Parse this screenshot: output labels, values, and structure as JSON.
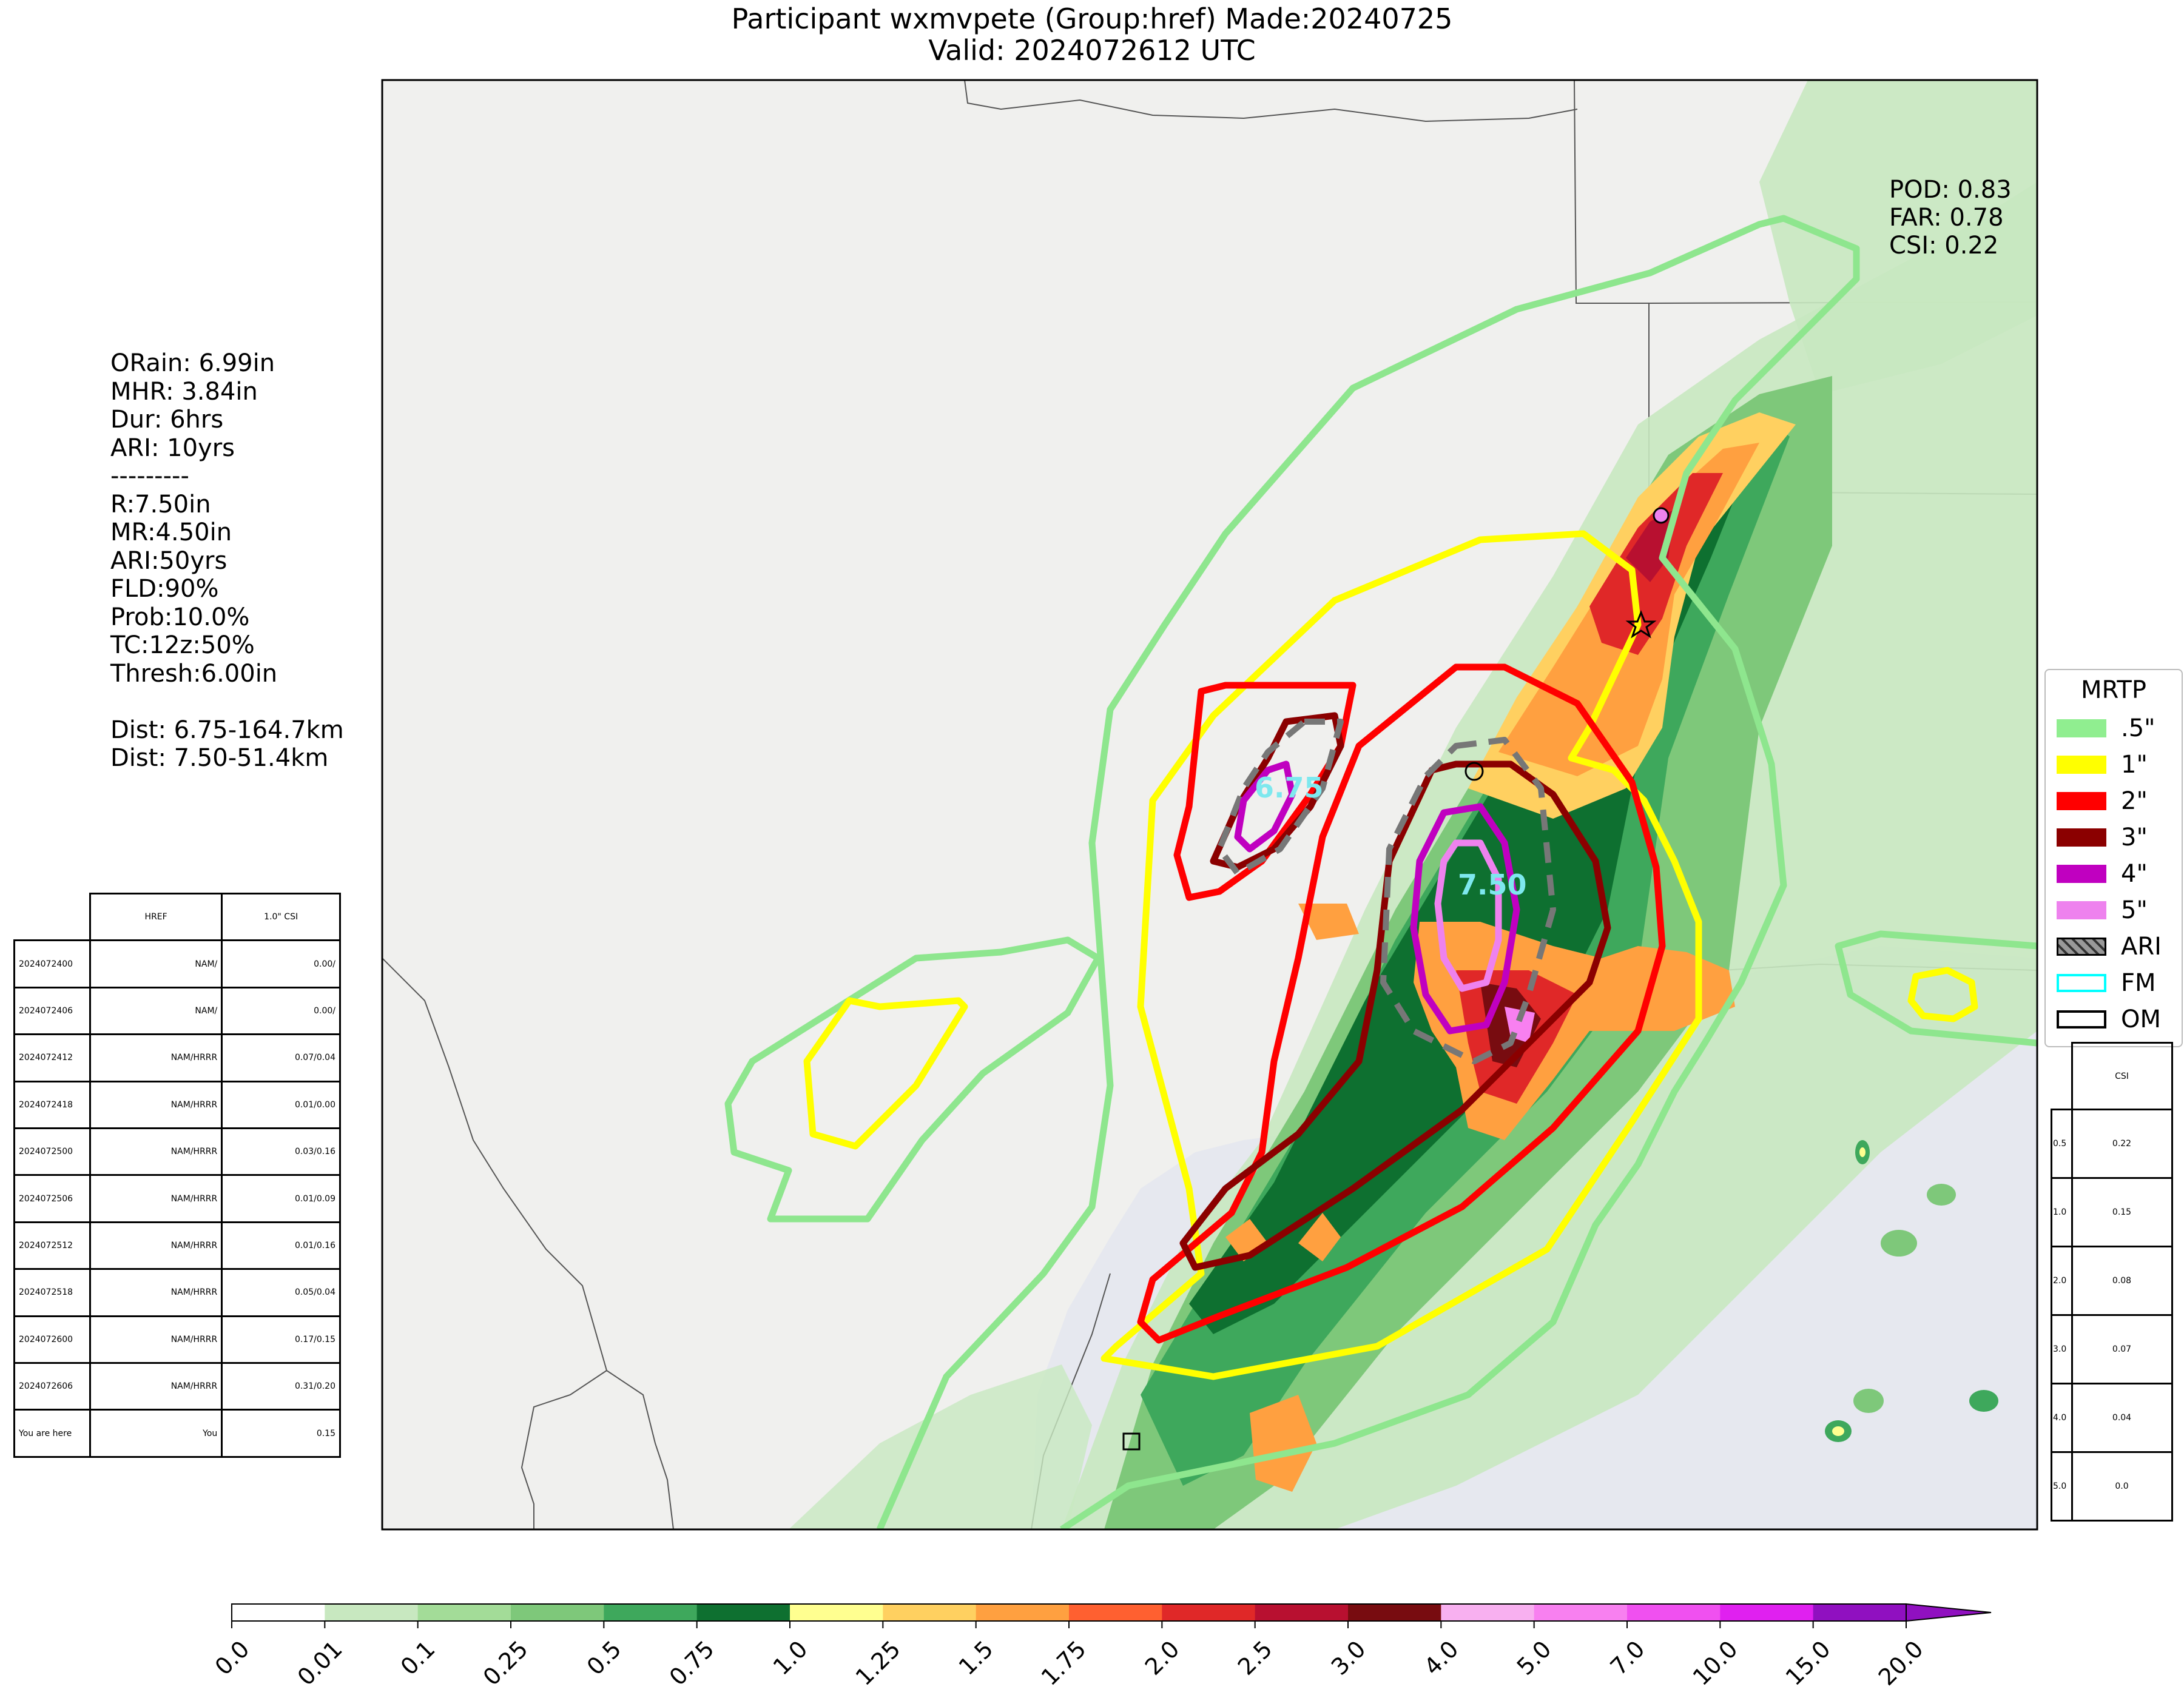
{
  "title": {
    "line1": "Participant wxmvpete (Group:href) Made:20240725",
    "line2": "Valid: 2024072612 UTC"
  },
  "stats": {
    "lines": [
      "ORain: 6.99in",
      "MHR: 3.84in",
      "Dur: 6hrs",
      "ARI: 10yrs",
      "---------",
      "R:7.50in",
      "MR:4.50in",
      "ARI:50yrs",
      "FLD:90%",
      "Prob:10.0%",
      "TC:12z:50%",
      "Thresh:6.00in",
      "",
      "Dist: 6.75-164.7km",
      "Dist: 7.50-51.4km"
    ]
  },
  "scores": {
    "pod": "POD: 0.83",
    "far": "FAR: 0.78",
    "csi": "CSI: 0.22"
  },
  "contour_labels": {
    "a": "6.75",
    "b": "7.50"
  },
  "legend": {
    "title": "MRTP",
    "items": [
      {
        "label": ".5\"",
        "color": "#90ee90",
        "kind": "fill"
      },
      {
        "label": "1\"",
        "color": "#ffff00",
        "kind": "fill"
      },
      {
        "label": "2\"",
        "color": "#ff0000",
        "kind": "fill"
      },
      {
        "label": "3\"",
        "color": "#8b0000",
        "kind": "fill"
      },
      {
        "label": "4\"",
        "color": "#c000c0",
        "kind": "fill"
      },
      {
        "label": "5\"",
        "color": "#ee82ee",
        "kind": "fill"
      },
      {
        "label": "ARI",
        "color": "#808080",
        "kind": "hatch"
      },
      {
        "label": "FM",
        "color": "#00ffff",
        "kind": "outline"
      },
      {
        "label": "OM",
        "color": "#000000",
        "kind": "outline"
      }
    ]
  },
  "history": {
    "header": [
      "",
      "HREF",
      "1.0\" CSI"
    ],
    "rows": [
      [
        "2024072400",
        "NAM/",
        "0.00/"
      ],
      [
        "2024072406",
        "NAM/",
        "0.00/"
      ],
      [
        "2024072412",
        "NAM/HRRR",
        "0.07/0.04"
      ],
      [
        "2024072418",
        "NAM/HRRR",
        "0.01/0.00"
      ],
      [
        "2024072500",
        "NAM/HRRR",
        "0.03/0.16"
      ],
      [
        "2024072506",
        "NAM/HRRR",
        "0.01/0.09"
      ],
      [
        "2024072512",
        "NAM/HRRR",
        "0.01/0.16"
      ],
      [
        "2024072518",
        "NAM/HRRR",
        "0.05/0.04"
      ],
      [
        "2024072600",
        "NAM/HRRR",
        "0.17/0.15"
      ],
      [
        "2024072606",
        "NAM/HRRR",
        "0.31/0.20"
      ],
      [
        "You are here",
        "You",
        "0.15"
      ]
    ]
  },
  "csi_table": {
    "header": "CSI",
    "rows": [
      [
        "0.5",
        "0.22"
      ],
      [
        "1.0",
        "0.15"
      ],
      [
        "2.0",
        "0.08"
      ],
      [
        "3.0",
        "0.07"
      ],
      [
        "4.0",
        "0.04"
      ],
      [
        "5.0",
        "0.0"
      ]
    ]
  },
  "colorbar": {
    "ticks": [
      "0.0",
      "0.01",
      "0.1",
      "0.25",
      "0.5",
      "0.75",
      "1.0",
      "1.25",
      "1.5",
      "1.75",
      "2.0",
      "2.5",
      "3.0",
      "4.0",
      "5.0",
      "7.0",
      "10.0",
      "15.0",
      "20.0"
    ],
    "colors": [
      "#ffffff",
      "#c8e8c0",
      "#a3dc98",
      "#7ec87a",
      "#3ea85c",
      "#0e7030",
      "#ffff90",
      "#ffd060",
      "#ffa040",
      "#ff6030",
      "#e02828",
      "#b81030",
      "#780c10",
      "#f8b0f0",
      "#f880f0",
      "#f050f0",
      "#e020f0",
      "#9010c0"
    ]
  }
}
